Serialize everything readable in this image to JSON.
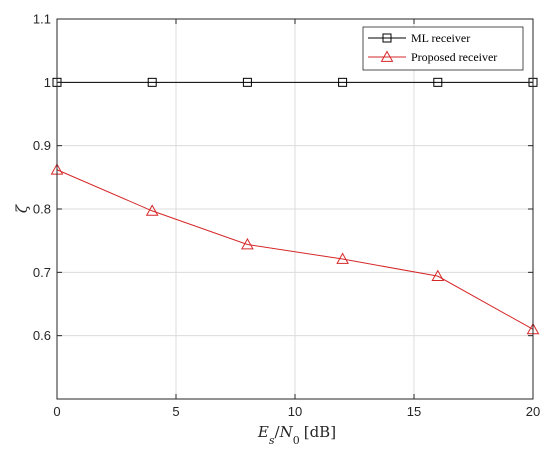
{
  "chart_data": {
    "type": "line",
    "x": [
      0,
      4,
      8,
      12,
      16,
      20
    ],
    "series": [
      {
        "name": "ML receiver",
        "values": [
          1.0,
          1.0,
          1.0,
          1.0,
          1.0,
          1.0
        ],
        "color": "#000000",
        "marker": "square"
      },
      {
        "name": "Proposed receiver",
        "values": [
          0.862,
          0.797,
          0.744,
          0.721,
          0.694,
          0.61
        ],
        "color": "#d62728",
        "marker": "triangle"
      }
    ],
    "xlabel": "Es/N0 [dB]",
    "xlabel_parts": {
      "E": "E",
      "s": "s",
      "slash": "/",
      "N": "N",
      "zero": "0",
      "unit": "[dB]"
    },
    "ylabel": "ζ",
    "xlim": [
      0,
      20
    ],
    "ylim": [
      0.5,
      1.1
    ],
    "xticks": [
      "0",
      "5",
      "10",
      "15",
      "20"
    ],
    "yticks": [
      "0.6",
      "0.7",
      "0.8",
      "0.9",
      "1",
      "1.1"
    ],
    "grid": true,
    "legend_position": "top-right"
  }
}
